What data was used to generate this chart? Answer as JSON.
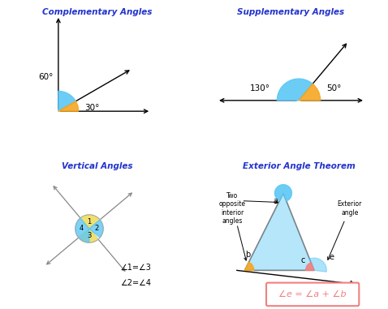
{
  "title_color": "#2233cc",
  "bg_color": "#ffffff",
  "comp_title": "Complementary Angles",
  "supp_title": "Supplementary Angles",
  "vert_title": "Vertical Angles",
  "ext_title": "Exterior Angle Theorem",
  "color_blue": "#5bc8f5",
  "color_orange": "#f5a623",
  "color_yellow": "#f0e070",
  "color_pink": "#f08080",
  "formula_border": "#f08080",
  "formula_text": "#f08080"
}
